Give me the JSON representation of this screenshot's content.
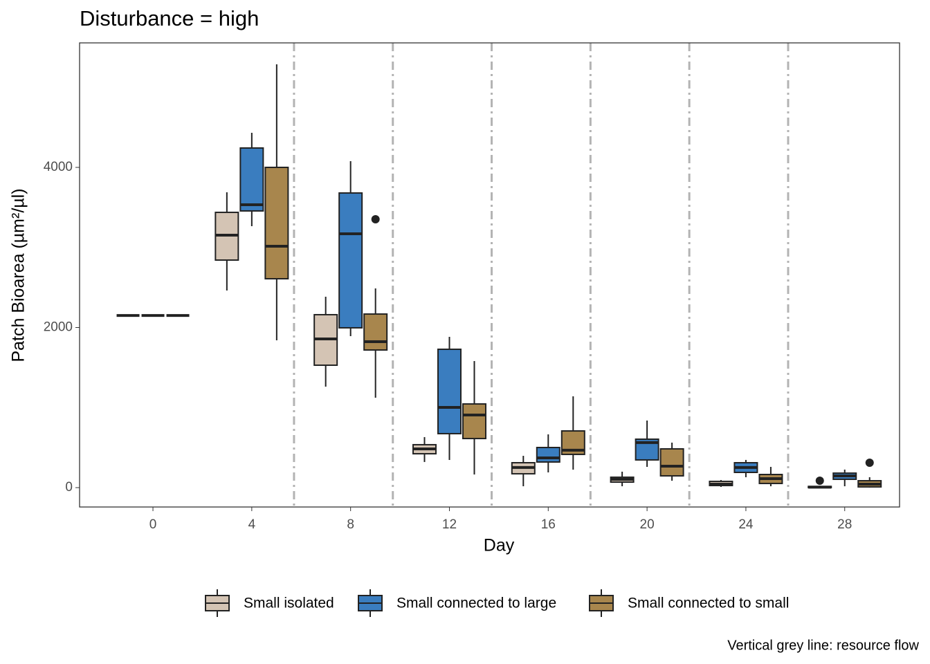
{
  "chart_data": {
    "type": "boxplot",
    "title": "Disturbance = high",
    "x_label": "Day",
    "y_label": "Patch Bioarea (µm²/µl)",
    "caption": "Vertical grey line: resource flow",
    "x": [
      0,
      4,
      8,
      12,
      16,
      20,
      24,
      28
    ],
    "xlim": [
      -2.97,
      30.22
    ],
    "xticks": [
      0,
      4,
      8,
      12,
      16,
      20,
      24,
      28
    ],
    "ylim": [
      -242,
      5555
    ],
    "yticks": [
      0,
      2000,
      4000
    ],
    "vlines": [
      5.71,
      9.71,
      13.71,
      17.71,
      21.71,
      25.71
    ],
    "legend": "bottom",
    "series": [
      {
        "name": "Small isolated",
        "color": "#d4c4b4",
        "boxes": [
          {
            "min": 2150,
            "q1": 2150,
            "median": 2150,
            "q3": 2150,
            "max": 2150,
            "outliers": []
          },
          {
            "min": 2462,
            "q1": 2842,
            "median": 3153,
            "q3": 3438,
            "max": 3689,
            "outliers": []
          },
          {
            "min": 1261,
            "q1": 1529,
            "median": 1857,
            "q3": 2160,
            "max": 2384,
            "outliers": []
          },
          {
            "min": 320,
            "q1": 423,
            "median": 484,
            "q3": 536,
            "max": 631,
            "outliers": []
          },
          {
            "min": 17,
            "q1": 173,
            "median": 251,
            "q3": 311,
            "max": 397,
            "outliers": []
          },
          {
            "min": 17,
            "q1": 69,
            "median": 104,
            "q3": 130,
            "max": 199,
            "outliers": []
          },
          {
            "min": 9,
            "q1": 26,
            "median": 43,
            "q3": 78,
            "max": 95,
            "outliers": []
          },
          {
            "min": 0,
            "q1": 0,
            "median": 5,
            "q3": 15,
            "max": 25,
            "outliers": [
              86
            ]
          }
        ]
      },
      {
        "name": "Small connected to large",
        "color": "#3a7dbf",
        "boxes": [
          {
            "min": 2150,
            "q1": 2150,
            "median": 2150,
            "q3": 2150,
            "max": 2150,
            "outliers": []
          },
          {
            "min": 3266,
            "q1": 3456,
            "median": 3533,
            "q3": 4242,
            "max": 4432,
            "outliers": []
          },
          {
            "min": 1892,
            "q1": 1996,
            "median": 3171,
            "q3": 3680,
            "max": 4078,
            "outliers": []
          },
          {
            "min": 346,
            "q1": 674,
            "median": 1002,
            "q3": 1728,
            "max": 1883,
            "outliers": []
          },
          {
            "min": 190,
            "q1": 320,
            "median": 371,
            "q3": 501,
            "max": 665,
            "outliers": []
          },
          {
            "min": 259,
            "q1": 346,
            "median": 562,
            "q3": 605,
            "max": 838,
            "outliers": []
          },
          {
            "min": 130,
            "q1": 190,
            "median": 251,
            "q3": 311,
            "max": 346,
            "outliers": []
          },
          {
            "min": 17,
            "q1": 104,
            "median": 147,
            "q3": 181,
            "max": 225,
            "outliers": []
          }
        ]
      },
      {
        "name": "Small connected to small",
        "color": "#a8864d",
        "boxes": [
          {
            "min": 2150,
            "q1": 2150,
            "median": 2150,
            "q3": 2150,
            "max": 2150,
            "outliers": []
          },
          {
            "min": 1840,
            "q1": 2609,
            "median": 3015,
            "q3": 4000,
            "max": 5287,
            "outliers": []
          },
          {
            "min": 1123,
            "q1": 1719,
            "median": 1823,
            "q3": 2168,
            "max": 2488,
            "outliers": [
              3352
            ]
          },
          {
            "min": 164,
            "q1": 613,
            "median": 907,
            "q3": 1045,
            "max": 1581,
            "outliers": []
          },
          {
            "min": 225,
            "q1": 415,
            "median": 467,
            "q3": 708,
            "max": 1140,
            "outliers": []
          },
          {
            "min": 86,
            "q1": 147,
            "median": 268,
            "q3": 484,
            "max": 562,
            "outliers": []
          },
          {
            "min": 17,
            "q1": 52,
            "median": 112,
            "q3": 164,
            "max": 259,
            "outliers": []
          },
          {
            "min": 0,
            "q1": 9,
            "median": 43,
            "q3": 86,
            "max": 130,
            "outliers": [
              311
            ]
          }
        ]
      }
    ]
  }
}
